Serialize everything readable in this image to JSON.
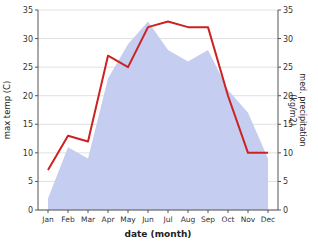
{
  "chart_data": {
    "type": "line",
    "categories": [
      "Jan",
      "Feb",
      "Mar",
      "Apr",
      "May",
      "Jun",
      "Jul",
      "Aug",
      "Sep",
      "Oct",
      "Nov",
      "Dec"
    ],
    "series": [
      {
        "type": "area",
        "axis": "y2",
        "color": "#c5cdf0",
        "values": [
          2,
          11,
          9,
          23,
          29,
          33,
          28,
          26,
          28,
          21,
          17,
          9
        ]
      },
      {
        "type": "line",
        "color": "#cc2222",
        "values": [
          7,
          13,
          12,
          27,
          25,
          32,
          33,
          32,
          32,
          20,
          10,
          10
        ]
      }
    ],
    "x_label": "date (month)",
    "y_label": "max temp (C)",
    "y2_label": "med. precipitation\n(kg/m2)",
    "ylim": [
      0,
      35
    ],
    "yticks": [
      0,
      5,
      10,
      15,
      20,
      25,
      30,
      35
    ],
    "y2lim": [
      0,
      35
    ],
    "y2ticks": [
      0,
      5,
      10,
      15,
      20,
      25,
      30,
      35
    ],
    "grid": true
  }
}
